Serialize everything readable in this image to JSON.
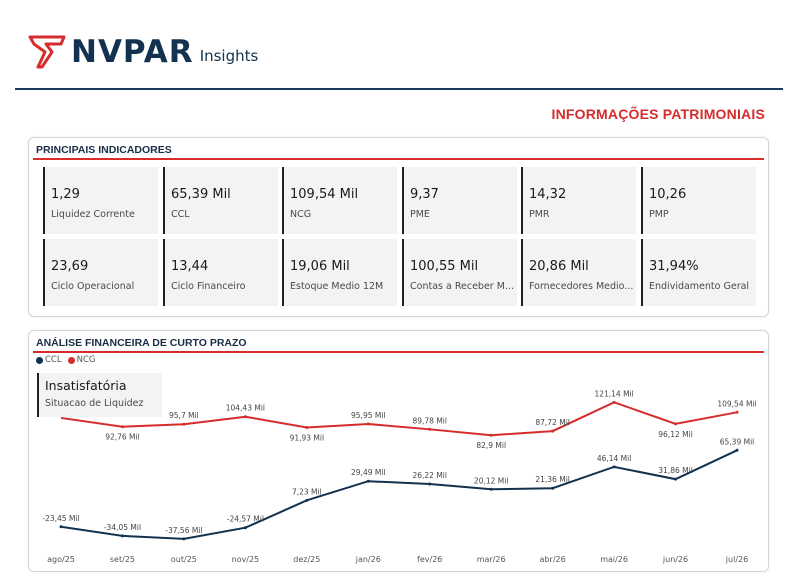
{
  "brand": {
    "name": "NVPAR",
    "suffix": "Insights",
    "color": "#12324f",
    "accent": "#d62c2c"
  },
  "page_title": "INFORMAÇÕES PATRIMONIAIS",
  "kpi_section": {
    "title": "PRINCIPAIS INDICADORES",
    "cards": [
      {
        "value": "1,29",
        "label": "Liquidez Corrente"
      },
      {
        "value": "65,39 Mil",
        "label": "CCL"
      },
      {
        "value": "109,54 Mil",
        "label": "NCG"
      },
      {
        "value": "9,37",
        "label": "PME"
      },
      {
        "value": "14,32",
        "label": "PMR"
      },
      {
        "value": "10,26",
        "label": "PMP"
      },
      {
        "value": "23,69",
        "label": "Ciclo Operacional"
      },
      {
        "value": "13,44",
        "label": "Ciclo Financeiro"
      },
      {
        "value": "19,06 Mil",
        "label": "Estoque Medio 12M"
      },
      {
        "value": "100,55 Mil",
        "label": "Contas a Receber M..."
      },
      {
        "value": "20,86 Mil",
        "label": "Fornecedores Medio..."
      },
      {
        "value": "31,94%",
        "label": "Endividamento Geral"
      }
    ]
  },
  "chart_section": {
    "title": "ANÁLISE FINANCEIRA DE CURTO PRAZO",
    "status_card": {
      "value": "Insatisfatória",
      "label": "Situacao de Liquidez"
    }
  },
  "chart_data": {
    "type": "line",
    "categories": [
      "ago/25",
      "set/25",
      "out/25",
      "nov/25",
      "dez/25",
      "jan/26",
      "fev/26",
      "mar/26",
      "abr/26",
      "mai/26",
      "jun/26",
      "jul/26"
    ],
    "series": [
      {
        "name": "CCL",
        "color": "#12324f",
        "values": [
          -23.45,
          -34.05,
          -37.56,
          -24.57,
          7.23,
          29.49,
          26.22,
          20.12,
          21.36,
          46.14,
          31.86,
          65.39
        ],
        "labels": [
          "-23,45 Mil",
          "-34,05 Mil",
          "-37,56 Mil",
          "-24,57 Mil",
          "7,23 Mil",
          "29,49 Mil",
          "26,22 Mil",
          "20,12 Mil",
          "21,36 Mil",
          "46,14 Mil",
          "31,86 Mil",
          "65,39 Mil"
        ]
      },
      {
        "name": "NCG",
        "color": "#d62c2c",
        "values": [
          null,
          92.76,
          95.7,
          104.43,
          91.93,
          95.95,
          89.78,
          82.9,
          87.72,
          121.14,
          96.12,
          109.54
        ],
        "labels": [
          "",
          "92,76 Mil",
          "95,7 Mil",
          "104,43 Mil",
          "91,93 Mil",
          "95,95 Mil",
          "89,78 Mil",
          "82,9 Mil",
          "87,72 Mil",
          "121,14 Mil",
          "96,12 Mil",
          "109,54 Mil"
        ],
        "start_value_hidden": 103
      }
    ],
    "legend": "top-left",
    "grid": false
  }
}
